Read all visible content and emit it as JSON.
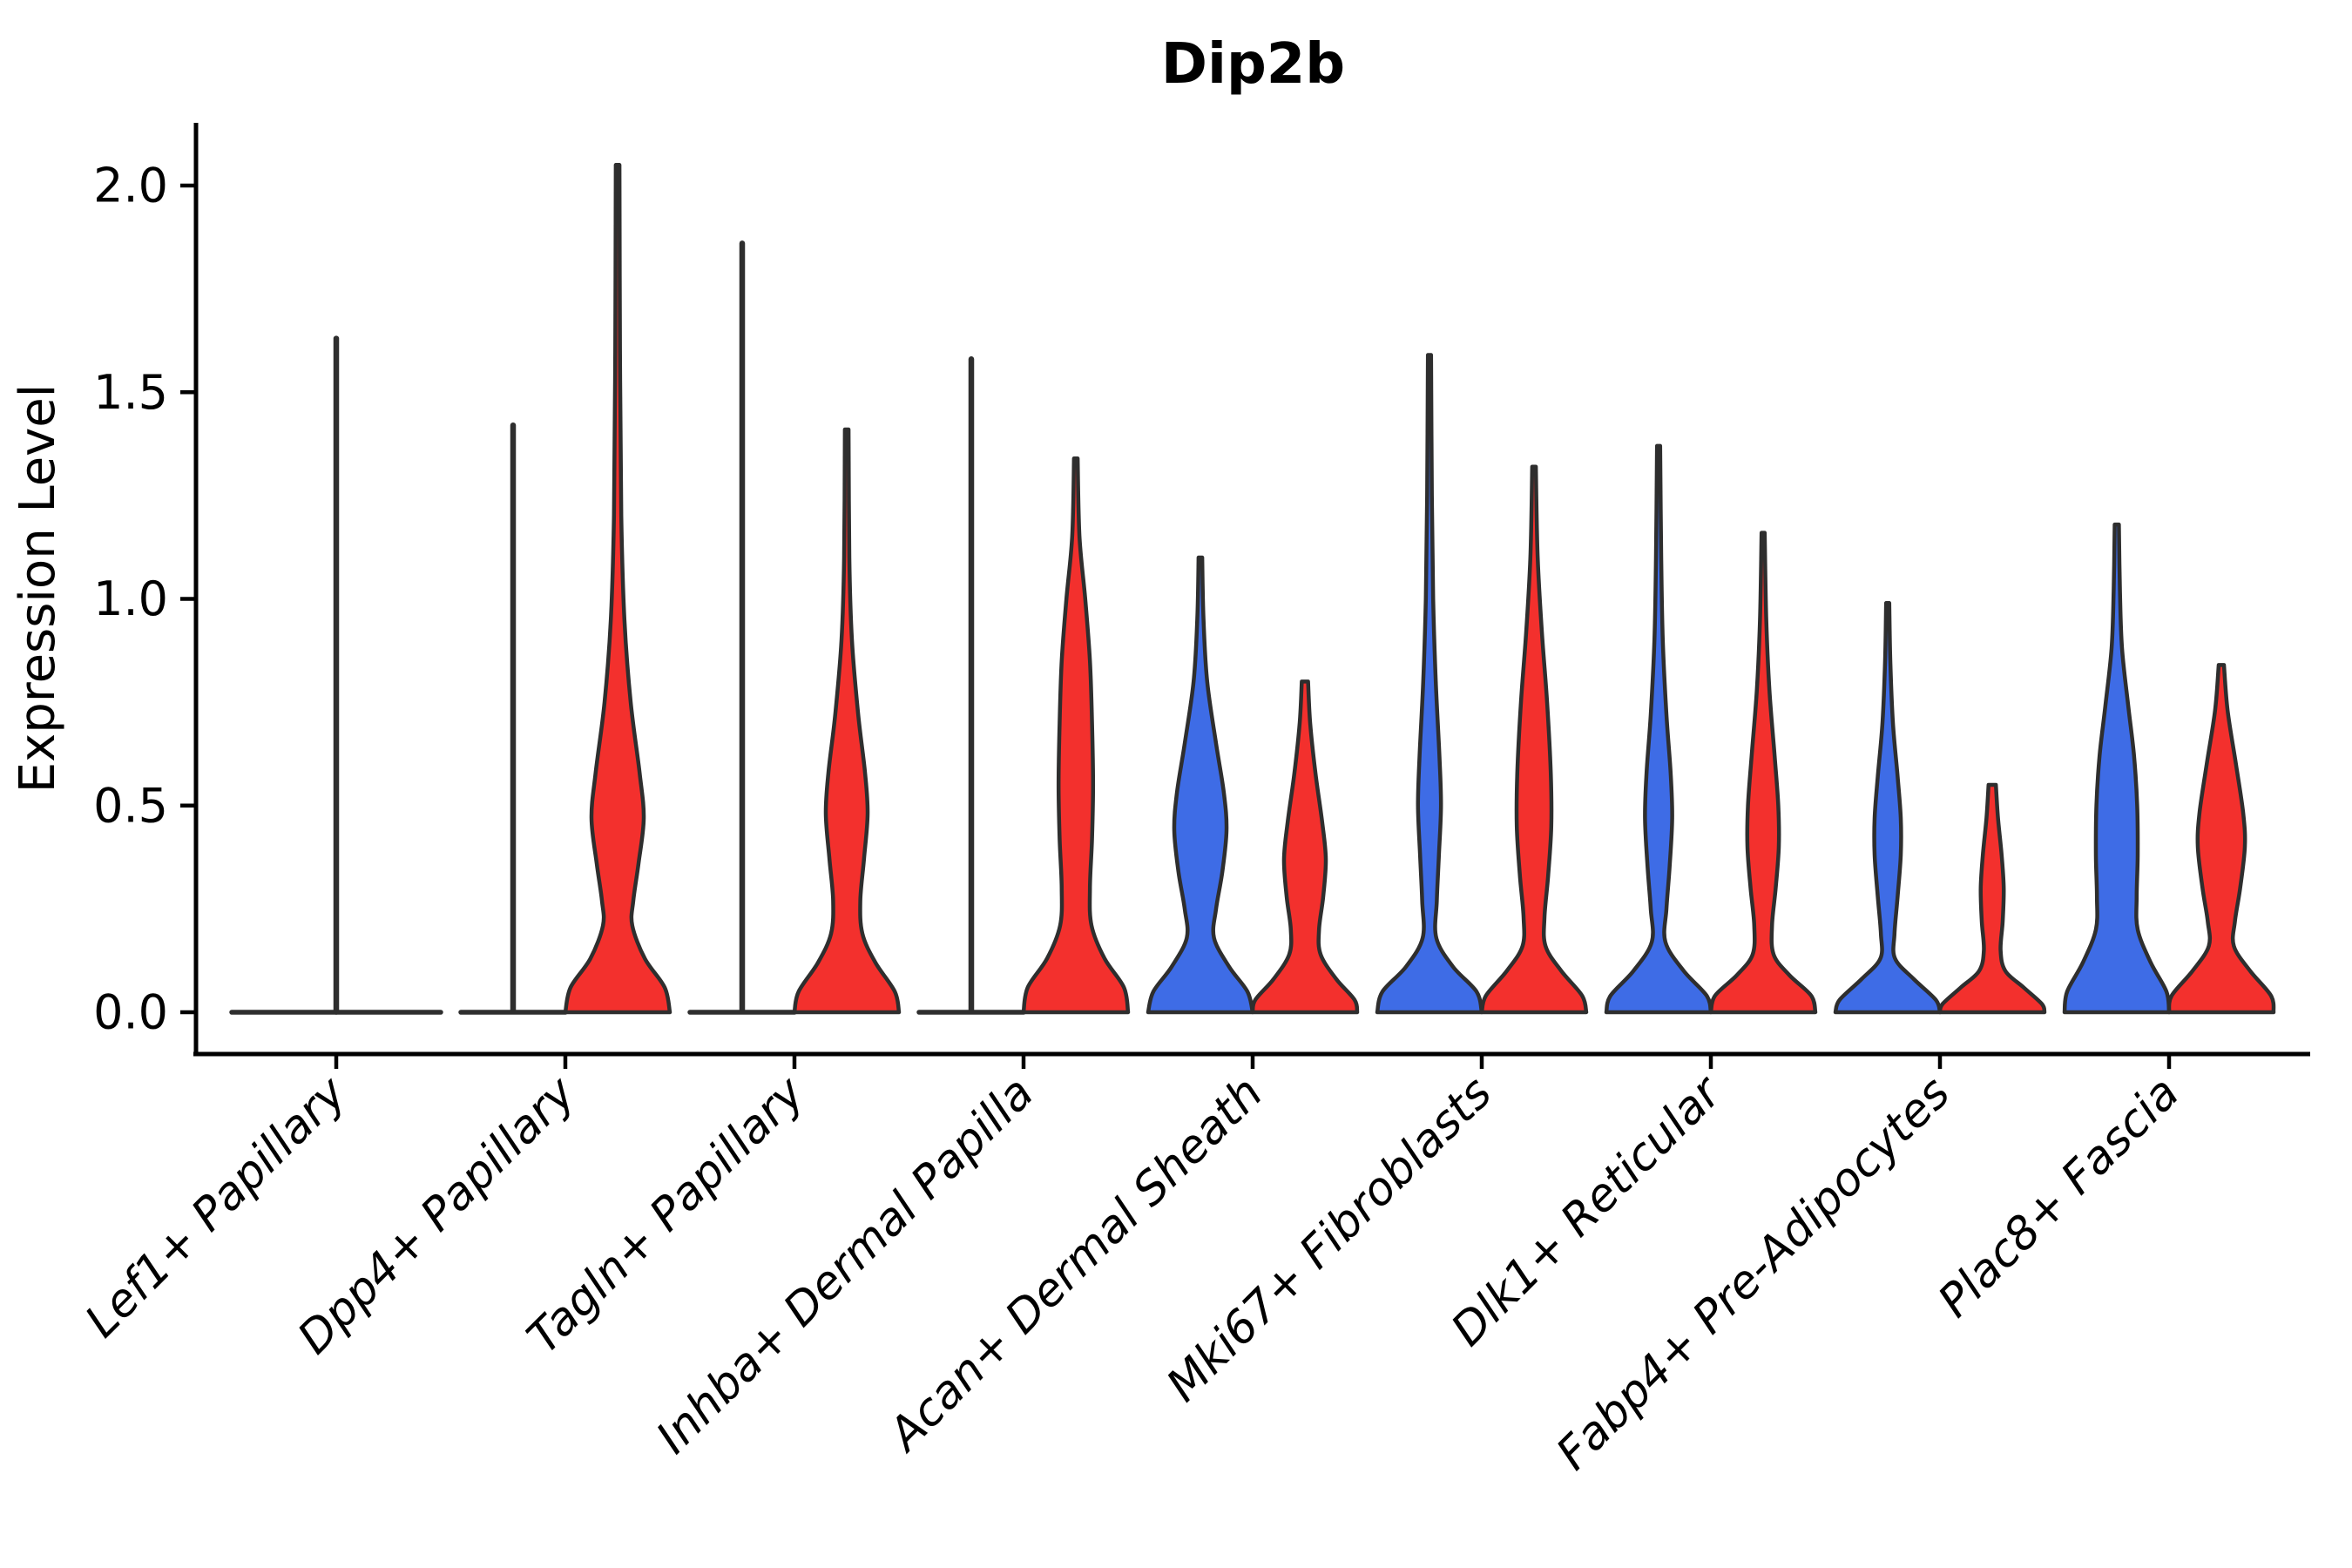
{
  "chart_data": {
    "type": "violin",
    "title": "Dip2b",
    "ylabel": "Expression Level",
    "ylim": [
      0,
      2.1
    ],
    "grid": false,
    "legend": "none",
    "yticks": [
      {
        "value": 0.0,
        "label": "0.0"
      },
      {
        "value": 0.5,
        "label": "0.5"
      },
      {
        "value": 1.0,
        "label": "1.0"
      },
      {
        "value": 1.5,
        "label": "1.5"
      },
      {
        "value": 2.0,
        "label": "2.0"
      }
    ],
    "colors": {
      "left_group": "#3E6CE6",
      "right_group": "#F3302D",
      "outline": "#2E2E2E"
    },
    "categories": [
      "Lef1+ Papillary",
      "Dpp4+ Papillary",
      "Tagln+ Papillary",
      "Inhba+ Dermal Papilla",
      "Acan+ Dermal Sheath",
      "Mki67+ Fibroblasts",
      "Dlk1+ Reticular",
      "Fabp4+ Pre-Adipocytes",
      "Plac8+ Fascia"
    ],
    "violins": [
      {
        "label": "Lef1+ Papillary",
        "left": {
          "collapsed": true,
          "max": 1.63
        },
        "right": {
          "collapsed": true,
          "max": 0.0
        },
        "spike": {
          "position": "center",
          "top": 1.63
        }
      },
      {
        "label": "Dpp4+ Papillary",
        "left": {
          "collapsed": true,
          "max": 1.42
        },
        "right": {
          "collapsed": false,
          "max": 2.05,
          "profile": [
            [
              2.05,
              0.035
            ],
            [
              1.6,
              0.045
            ],
            [
              1.2,
              0.07
            ],
            [
              0.95,
              0.13
            ],
            [
              0.75,
              0.25
            ],
            [
              0.58,
              0.42
            ],
            [
              0.47,
              0.5
            ],
            [
              0.36,
              0.4
            ],
            [
              0.27,
              0.3
            ],
            [
              0.21,
              0.28
            ],
            [
              0.13,
              0.52
            ],
            [
              0.06,
              0.9
            ],
            [
              0.0,
              1.0
            ]
          ]
        },
        "spike": {
          "position": "left",
          "top": 1.42
        }
      },
      {
        "label": "Tagln+ Papillary",
        "left": {
          "collapsed": true,
          "max": 1.86
        },
        "right": {
          "collapsed": false,
          "max": 1.41,
          "profile": [
            [
              1.41,
              0.035
            ],
            [
              1.1,
              0.05
            ],
            [
              0.9,
              0.1
            ],
            [
              0.72,
              0.22
            ],
            [
              0.58,
              0.35
            ],
            [
              0.48,
              0.4
            ],
            [
              0.37,
              0.33
            ],
            [
              0.27,
              0.26
            ],
            [
              0.19,
              0.3
            ],
            [
              0.12,
              0.55
            ],
            [
              0.05,
              0.92
            ],
            [
              0.0,
              1.0
            ]
          ]
        },
        "spike": {
          "position": "left",
          "top": 1.86
        }
      },
      {
        "label": "Inhba+ Dermal Papilla",
        "left": {
          "collapsed": true,
          "max": 1.58
        },
        "right": {
          "collapsed": false,
          "max": 1.34,
          "profile": [
            [
              1.34,
              0.035
            ],
            [
              1.15,
              0.07
            ],
            [
              1.0,
              0.18
            ],
            [
              0.85,
              0.27
            ],
            [
              0.7,
              0.31
            ],
            [
              0.55,
              0.33
            ],
            [
              0.42,
              0.31
            ],
            [
              0.3,
              0.27
            ],
            [
              0.21,
              0.3
            ],
            [
              0.13,
              0.55
            ],
            [
              0.06,
              0.92
            ],
            [
              0.0,
              1.0
            ]
          ]
        },
        "spike": {
          "position": "left",
          "top": 1.58
        }
      },
      {
        "label": "Acan+ Dermal Sheath",
        "left": {
          "collapsed": false,
          "max": 1.1,
          "profile": [
            [
              1.1,
              0.035
            ],
            [
              0.95,
              0.06
            ],
            [
              0.8,
              0.13
            ],
            [
              0.65,
              0.3
            ],
            [
              0.53,
              0.45
            ],
            [
              0.44,
              0.5
            ],
            [
              0.34,
              0.42
            ],
            [
              0.25,
              0.3
            ],
            [
              0.18,
              0.26
            ],
            [
              0.11,
              0.55
            ],
            [
              0.05,
              0.9
            ],
            [
              0.0,
              1.0
            ]
          ]
        },
        "right": {
          "collapsed": false,
          "max": 0.8,
          "profile": [
            [
              0.8,
              0.06
            ],
            [
              0.7,
              0.1
            ],
            [
              0.58,
              0.2
            ],
            [
              0.46,
              0.33
            ],
            [
              0.37,
              0.4
            ],
            [
              0.28,
              0.35
            ],
            [
              0.2,
              0.27
            ],
            [
              0.14,
              0.3
            ],
            [
              0.08,
              0.6
            ],
            [
              0.03,
              0.95
            ],
            [
              0.0,
              1.0
            ]
          ]
        }
      },
      {
        "label": "Mki67+ Fibroblasts",
        "left": {
          "collapsed": false,
          "max": 1.59,
          "profile": [
            [
              1.59,
              0.03
            ],
            [
              1.25,
              0.045
            ],
            [
              1.0,
              0.07
            ],
            [
              0.8,
              0.12
            ],
            [
              0.62,
              0.19
            ],
            [
              0.5,
              0.22
            ],
            [
              0.38,
              0.18
            ],
            [
              0.27,
              0.14
            ],
            [
              0.18,
              0.13
            ],
            [
              0.11,
              0.45
            ],
            [
              0.05,
              0.9
            ],
            [
              0.0,
              1.0
            ]
          ]
        },
        "right": {
          "collapsed": false,
          "max": 1.32,
          "profile": [
            [
              1.32,
              0.035
            ],
            [
              1.1,
              0.07
            ],
            [
              0.92,
              0.15
            ],
            [
              0.75,
              0.25
            ],
            [
              0.58,
              0.32
            ],
            [
              0.45,
              0.33
            ],
            [
              0.33,
              0.27
            ],
            [
              0.23,
              0.2
            ],
            [
              0.16,
              0.22
            ],
            [
              0.1,
              0.52
            ],
            [
              0.04,
              0.92
            ],
            [
              0.0,
              1.0
            ]
          ]
        }
      },
      {
        "label": "Dlk1+ Reticular",
        "left": {
          "collapsed": false,
          "max": 1.37,
          "profile": [
            [
              1.37,
              0.03
            ],
            [
              1.1,
              0.05
            ],
            [
              0.9,
              0.08
            ],
            [
              0.72,
              0.15
            ],
            [
              0.58,
              0.23
            ],
            [
              0.47,
              0.26
            ],
            [
              0.35,
              0.21
            ],
            [
              0.25,
              0.15
            ],
            [
              0.17,
              0.13
            ],
            [
              0.1,
              0.48
            ],
            [
              0.04,
              0.92
            ],
            [
              0.0,
              1.0
            ]
          ]
        },
        "right": {
          "collapsed": false,
          "max": 1.16,
          "profile": [
            [
              1.16,
              0.03
            ],
            [
              0.95,
              0.06
            ],
            [
              0.78,
              0.12
            ],
            [
              0.62,
              0.22
            ],
            [
              0.5,
              0.29
            ],
            [
              0.4,
              0.3
            ],
            [
              0.3,
              0.24
            ],
            [
              0.21,
              0.17
            ],
            [
              0.14,
              0.2
            ],
            [
              0.09,
              0.5
            ],
            [
              0.04,
              0.92
            ],
            [
              0.0,
              1.0
            ]
          ]
        }
      },
      {
        "label": "Fabp4+ Pre-Adipocytes",
        "left": {
          "collapsed": false,
          "max": 0.99,
          "profile": [
            [
              0.99,
              0.03
            ],
            [
              0.85,
              0.05
            ],
            [
              0.7,
              0.1
            ],
            [
              0.57,
              0.19
            ],
            [
              0.47,
              0.25
            ],
            [
              0.38,
              0.25
            ],
            [
              0.28,
              0.19
            ],
            [
              0.19,
              0.13
            ],
            [
              0.13,
              0.14
            ],
            [
              0.08,
              0.5
            ],
            [
              0.03,
              0.92
            ],
            [
              0.0,
              1.0
            ]
          ]
        },
        "right": {
          "collapsed": false,
          "max": 0.55,
          "profile": [
            [
              0.55,
              0.07
            ],
            [
              0.47,
              0.11
            ],
            [
              0.38,
              0.18
            ],
            [
              0.3,
              0.22
            ],
            [
              0.22,
              0.2
            ],
            [
              0.15,
              0.16
            ],
            [
              0.1,
              0.25
            ],
            [
              0.06,
              0.6
            ],
            [
              0.02,
              0.95
            ],
            [
              0.0,
              1.0
            ]
          ]
        }
      },
      {
        "label": "Plac8+ Fascia",
        "left": {
          "collapsed": false,
          "max": 1.18,
          "profile": [
            [
              1.18,
              0.04
            ],
            [
              1.02,
              0.06
            ],
            [
              0.88,
              0.1
            ],
            [
              0.74,
              0.22
            ],
            [
              0.62,
              0.33
            ],
            [
              0.5,
              0.39
            ],
            [
              0.38,
              0.4
            ],
            [
              0.28,
              0.38
            ],
            [
              0.2,
              0.4
            ],
            [
              0.12,
              0.65
            ],
            [
              0.05,
              0.95
            ],
            [
              0.0,
              1.0
            ]
          ]
        },
        "right": {
          "collapsed": false,
          "max": 0.84,
          "profile": [
            [
              0.84,
              0.05
            ],
            [
              0.73,
              0.12
            ],
            [
              0.6,
              0.28
            ],
            [
              0.48,
              0.42
            ],
            [
              0.4,
              0.45
            ],
            [
              0.3,
              0.36
            ],
            [
              0.22,
              0.26
            ],
            [
              0.16,
              0.24
            ],
            [
              0.1,
              0.55
            ],
            [
              0.04,
              0.95
            ],
            [
              0.0,
              1.0
            ]
          ]
        }
      }
    ]
  }
}
